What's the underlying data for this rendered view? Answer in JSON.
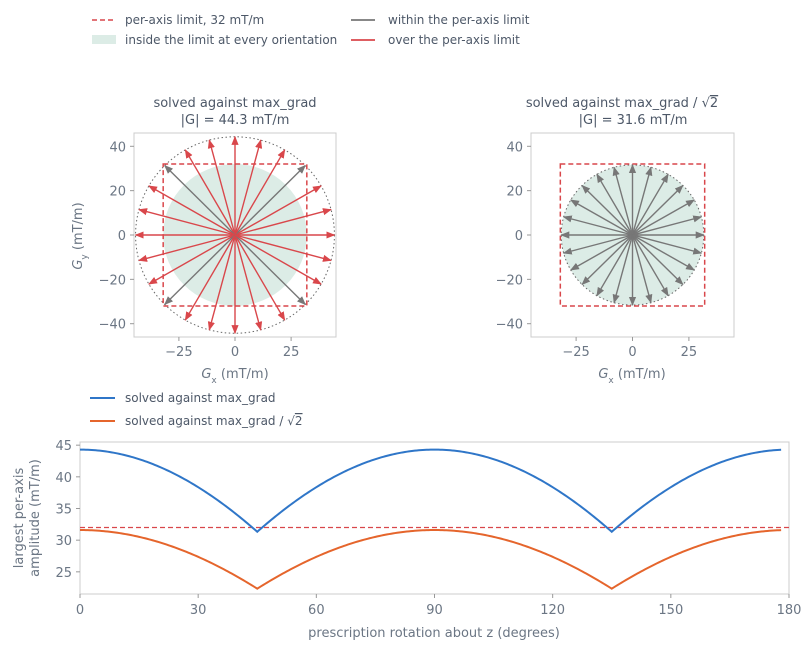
{
  "top_legend": {
    "limit": "per-axis limit, 32 mT/m",
    "inside": "inside the limit at every orientation",
    "within": "within the per-axis limit",
    "over": "over the per-axis limit"
  },
  "bottom_legend": {
    "a": "solved against max_grad",
    "b_prefix": "solved against max_grad / ",
    "b_sqrt": "2"
  },
  "colors": {
    "limit": "#d9474b",
    "within": "#777777",
    "over": "#d9474b",
    "fill": "#dcece6",
    "blue": "#2f76c8",
    "orange": "#e5652c",
    "axis": "#cccccc",
    "circle": "#666666"
  },
  "chart_data": [
    {
      "type": "scatter",
      "title_line1": "solved against max_grad",
      "title_line2": "|G| = 44.3 mT/m",
      "xlabel": "G_x (mT/m)",
      "ylabel": "G_y (mT/m)",
      "xlim": [
        -45,
        45
      ],
      "ylim": [
        -46,
        46
      ],
      "xticks": [
        -25,
        0,
        25
      ],
      "yticks": [
        40,
        20,
        0,
        -20,
        -40
      ],
      "limit": 32,
      "magnitude": 44.3,
      "vector_angle_step_deg": 15,
      "vector_count": 24,
      "within_angles_deg": [
        45,
        135,
        225,
        315
      ]
    },
    {
      "type": "scatter",
      "title_line1_prefix": "solved against max_grad / ",
      "title_line1_sqrt": "2",
      "title_line2": "|G| = 31.6 mT/m",
      "xlabel": "G_x (mT/m)",
      "xlim": [
        -45,
        45
      ],
      "ylim": [
        -46,
        46
      ],
      "xticks": [
        -25,
        0,
        25
      ],
      "yticks": [
        40,
        20,
        0,
        -20,
        -40
      ],
      "limit": 32,
      "magnitude": 31.6,
      "vector_angle_step_deg": 15,
      "vector_count": 24,
      "within_angles_deg": "all"
    },
    {
      "type": "line",
      "xlabel": "prescription rotation about z (degrees)",
      "ylabel_line1": "largest per-axis",
      "ylabel_line2": "amplitude (mT/m)",
      "xlim": [
        0,
        180
      ],
      "ylim": [
        21.5,
        45.5
      ],
      "xticks": [
        0,
        30,
        60,
        90,
        120,
        150,
        180
      ],
      "yticks": [
        45,
        40,
        35,
        30,
        25
      ],
      "limit": 32,
      "x_range": [
        0,
        178
      ],
      "series": [
        {
          "name": "solved against max_grad",
          "magnitude": 44.3
        },
        {
          "name": "solved against max_grad / √2",
          "magnitude": 31.6
        }
      ]
    }
  ]
}
